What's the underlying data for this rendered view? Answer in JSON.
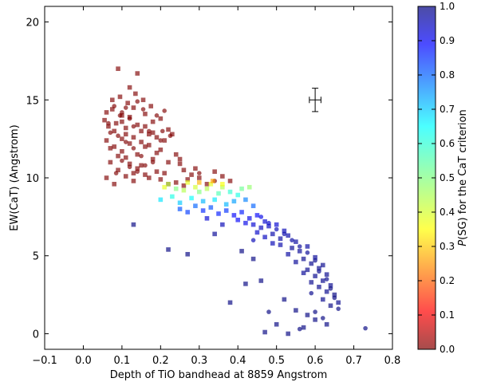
{
  "chart_data": {
    "type": "scatter",
    "xlabel": "Depth of TiO bandhead at 8859 Angstrom",
    "ylabel": "EW(CaT) (Angstrom)",
    "xlim": [
      -0.1,
      0.8
    ],
    "ylim": [
      -1,
      21
    ],
    "xticks": [
      "−0.1",
      "0.0",
      "0.1",
      "0.2",
      "0.3",
      "0.4",
      "0.5",
      "0.6",
      "0.7",
      "0.8"
    ],
    "yticks": [
      "0",
      "5",
      "10",
      "15",
      "20"
    ],
    "grid": false,
    "colorbar": {
      "label_italic": "P",
      "label_rest": "(SG) for the CaT criterion",
      "range": [
        0.0,
        1.0
      ],
      "ticks": [
        "0.0",
        "0.1",
        "0.2",
        "0.3",
        "0.4",
        "0.5",
        "0.6",
        "0.7",
        "0.8",
        "0.9",
        "1.0"
      ],
      "colormap": "jet",
      "alpha": 0.65
    },
    "error_bar": {
      "x": 0.6,
      "y": 15.0,
      "xerr": 0.015,
      "yerr": 0.75
    },
    "series": [
      {
        "marker": "square",
        "points": [
          [
            0.09,
            17.0
          ],
          [
            0.12,
            15.8
          ],
          [
            0.14,
            16.7
          ],
          [
            0.055,
            13.7
          ],
          [
            0.065,
            13.3
          ],
          [
            0.075,
            14.4
          ],
          [
            0.085,
            13.5
          ],
          [
            0.1,
            14.0
          ],
          [
            0.11,
            13.2
          ],
          [
            0.13,
            14.5
          ],
          [
            0.15,
            13.0
          ],
          [
            0.16,
            14.1
          ],
          [
            0.17,
            12.8
          ],
          [
            0.18,
            13.6
          ],
          [
            0.19,
            12.6
          ],
          [
            0.2,
            13.8
          ],
          [
            0.21,
            12.4
          ],
          [
            0.22,
            13.1
          ],
          [
            0.06,
            12.4
          ],
          [
            0.08,
            12.0
          ],
          [
            0.1,
            11.7
          ],
          [
            0.12,
            12.2
          ],
          [
            0.14,
            11.5
          ],
          [
            0.16,
            12.0
          ],
          [
            0.18,
            11.2
          ],
          [
            0.2,
            11.8
          ],
          [
            0.22,
            11.0
          ],
          [
            0.24,
            11.5
          ],
          [
            0.26,
            10.5
          ],
          [
            0.07,
            11.0
          ],
          [
            0.09,
            10.5
          ],
          [
            0.11,
            11.3
          ],
          [
            0.13,
            10.3
          ],
          [
            0.15,
            10.8
          ],
          [
            0.17,
            10.0
          ],
          [
            0.19,
            10.4
          ],
          [
            0.06,
            10.0
          ],
          [
            0.08,
            9.6
          ],
          [
            0.28,
            10.2
          ],
          [
            0.3,
            10.0
          ],
          [
            0.32,
            9.6
          ],
          [
            0.34,
            10.4
          ],
          [
            0.36,
            10.1
          ],
          [
            0.38,
            9.8
          ],
          [
            0.29,
            10.6
          ],
          [
            0.23,
            12.8
          ],
          [
            0.25,
            11.2
          ],
          [
            0.21,
            10.3
          ],
          [
            0.095,
            15.2
          ],
          [
            0.115,
            14.8
          ],
          [
            0.135,
            15.4
          ],
          [
            0.155,
            15.0
          ],
          [
            0.175,
            14.6
          ],
          [
            0.075,
            15.0
          ],
          [
            0.06,
            14.2
          ],
          [
            0.11,
            12.8
          ],
          [
            0.13,
            12.6
          ],
          [
            0.15,
            12.3
          ],
          [
            0.17,
            12.1
          ],
          [
            0.19,
            11.6
          ],
          [
            0.12,
            10.9
          ],
          [
            0.14,
            10.6
          ],
          [
            0.16,
            10.2
          ],
          [
            0.2,
            9.9
          ],
          [
            0.22,
            9.6
          ],
          [
            0.24,
            9.7
          ],
          [
            0.26,
            9.5
          ],
          [
            0.08,
            13.0
          ],
          [
            0.1,
            13.6
          ],
          [
            0.12,
            13.9
          ],
          [
            0.14,
            13.4
          ],
          [
            0.16,
            13.3
          ],
          [
            0.18,
            12.9
          ],
          [
            0.1,
            12.5
          ],
          [
            0.07,
            11.9
          ],
          [
            0.09,
            11.4
          ],
          [
            0.11,
            10.1
          ],
          [
            0.13,
            9.8
          ],
          [
            0.25,
            10.9
          ],
          [
            0.27,
            9.9
          ]
        ],
        "p": [
          1,
          1,
          1,
          1,
          1,
          1,
          1,
          1,
          1,
          1,
          1,
          1,
          1,
          1,
          1,
          1,
          1,
          1,
          1,
          1,
          1,
          1,
          1,
          1,
          1,
          1,
          1,
          1,
          1,
          1,
          1,
          1,
          1,
          1,
          1,
          1,
          1,
          1,
          1,
          1,
          1,
          1,
          1,
          1,
          1,
          1,
          1,
          1,
          1,
          1,
          1,
          1,
          1,
          1,
          1,
          1,
          1,
          1,
          1,
          1,
          1,
          1,
          1,
          1,
          1,
          1,
          1,
          1,
          1,
          1,
          1,
          1,
          1,
          1,
          1,
          1,
          1,
          1,
          1,
          1
        ]
      },
      {
        "marker": "circle",
        "points": [
          [
            0.08,
            14.6
          ],
          [
            0.1,
            14.2
          ],
          [
            0.12,
            13.8
          ],
          [
            0.14,
            14.9
          ],
          [
            0.09,
            12.7
          ],
          [
            0.11,
            12.3
          ],
          [
            0.13,
            11.9
          ],
          [
            0.07,
            12.9
          ],
          [
            0.15,
            11.4
          ],
          [
            0.1,
            11.1
          ],
          [
            0.12,
            10.7
          ],
          [
            0.14,
            10.4
          ],
          [
            0.16,
            10.8
          ],
          [
            0.2,
            12.4
          ],
          [
            0.17,
            13.0
          ],
          [
            0.19,
            14.0
          ],
          [
            0.21,
            14.3
          ],
          [
            0.085,
            10.3
          ],
          [
            0.065,
            13.5
          ],
          [
            0.18,
            11.0
          ],
          [
            0.13,
            13.3
          ],
          [
            0.095,
            14.0
          ],
          [
            0.155,
            14.4
          ],
          [
            0.11,
            14.5
          ],
          [
            0.205,
            13.0
          ],
          [
            0.225,
            12.7
          ],
          [
            0.3,
            10.3
          ],
          [
            0.34,
            9.8
          ]
        ],
        "p": [
          1,
          1,
          1,
          1,
          1,
          1,
          1,
          1,
          1,
          1,
          1,
          1,
          1,
          1,
          1,
          1,
          1,
          1,
          1,
          1,
          1,
          1,
          1,
          1,
          1,
          1,
          1,
          1
        ]
      },
      {
        "marker": "square",
        "points": [
          [
            0.21,
            9.4
          ],
          [
            0.22,
            9.6
          ],
          [
            0.24,
            9.3
          ],
          [
            0.26,
            9.2
          ],
          [
            0.27,
            9.7
          ],
          [
            0.29,
            9.4
          ],
          [
            0.3,
            9.1
          ],
          [
            0.32,
            9.3
          ],
          [
            0.33,
            9.6
          ],
          [
            0.35,
            9.0
          ],
          [
            0.36,
            9.4
          ],
          [
            0.38,
            9.1
          ],
          [
            0.4,
            8.9
          ],
          [
            0.41,
            9.3
          ],
          [
            0.43,
            9.4
          ],
          [
            0.2,
            8.6
          ],
          [
            0.23,
            8.8
          ],
          [
            0.25,
            8.4
          ],
          [
            0.28,
            8.7
          ],
          [
            0.31,
            8.5
          ],
          [
            0.34,
            8.6
          ],
          [
            0.37,
            8.3
          ],
          [
            0.39,
            8.5
          ],
          [
            0.42,
            8.6
          ],
          [
            0.44,
            8.2
          ],
          [
            0.3,
            9.7
          ],
          [
            0.335,
            9.8
          ],
          [
            0.36,
            9.6
          ]
        ],
        "p": [
          0.6,
          0.55,
          0.5,
          0.55,
          0.6,
          0.58,
          0.5,
          0.55,
          0.6,
          0.45,
          0.55,
          0.42,
          0.4,
          0.48,
          0.52,
          0.35,
          0.4,
          0.32,
          0.38,
          0.3,
          0.35,
          0.3,
          0.28,
          0.25,
          0.22,
          0.7,
          0.72,
          0.62
        ]
      },
      {
        "marker": "square",
        "points": [
          [
            0.25,
            8.0
          ],
          [
            0.27,
            7.8
          ],
          [
            0.29,
            8.2
          ],
          [
            0.31,
            7.9
          ],
          [
            0.33,
            8.1
          ],
          [
            0.35,
            7.7
          ],
          [
            0.37,
            7.9
          ],
          [
            0.39,
            7.6
          ],
          [
            0.41,
            7.8
          ],
          [
            0.43,
            7.4
          ],
          [
            0.45,
            7.6
          ],
          [
            0.47,
            7.2
          ],
          [
            0.48,
            6.9
          ],
          [
            0.5,
            7.0
          ],
          [
            0.52,
            6.6
          ],
          [
            0.46,
            6.8
          ],
          [
            0.44,
            7.0
          ],
          [
            0.49,
            6.4
          ],
          [
            0.51,
            6.1
          ],
          [
            0.53,
            6.3
          ],
          [
            0.55,
            5.9
          ],
          [
            0.54,
            5.5
          ],
          [
            0.56,
            5.3
          ],
          [
            0.58,
            5.6
          ],
          [
            0.57,
            4.8
          ],
          [
            0.59,
            4.5
          ],
          [
            0.6,
            4.9
          ],
          [
            0.61,
            4.2
          ],
          [
            0.62,
            4.4
          ],
          [
            0.58,
            4.1
          ],
          [
            0.6,
            3.7
          ],
          [
            0.62,
            3.4
          ],
          [
            0.63,
            3.8
          ],
          [
            0.61,
            3.0
          ],
          [
            0.63,
            2.7
          ],
          [
            0.64,
            3.1
          ],
          [
            0.65,
            2.5
          ],
          [
            0.62,
            2.2
          ],
          [
            0.64,
            1.8
          ],
          [
            0.66,
            2.0
          ],
          [
            0.59,
            3.3
          ],
          [
            0.57,
            3.9
          ],
          [
            0.55,
            4.6
          ],
          [
            0.53,
            5.1
          ],
          [
            0.51,
            5.7
          ],
          [
            0.49,
            5.8
          ],
          [
            0.47,
            6.2
          ],
          [
            0.45,
            6.5
          ],
          [
            0.42,
            7.1
          ],
          [
            0.4,
            7.3
          ],
          [
            0.13,
            7.0
          ],
          [
            0.22,
            5.4
          ],
          [
            0.27,
            5.1
          ],
          [
            0.41,
            5.3
          ],
          [
            0.44,
            4.8
          ],
          [
            0.46,
            3.4
          ],
          [
            0.42,
            3.2
          ],
          [
            0.38,
            2.0
          ],
          [
            0.52,
            2.2
          ],
          [
            0.55,
            1.5
          ],
          [
            0.58,
            1.2
          ],
          [
            0.5,
            0.6
          ],
          [
            0.47,
            0.1
          ],
          [
            0.53,
            0.0
          ],
          [
            0.57,
            0.4
          ],
          [
            0.6,
            0.9
          ],
          [
            0.63,
            0.6
          ],
          [
            0.34,
            6.4
          ],
          [
            0.36,
            7.0
          ],
          [
            0.32,
            7.4
          ]
        ],
        "p": [
          0.2,
          0.18,
          0.22,
          0.16,
          0.2,
          0.15,
          0.17,
          0.12,
          0.15,
          0.1,
          0.12,
          0.08,
          0.06,
          0.08,
          0.05,
          0.06,
          0.08,
          0.04,
          0.03,
          0.04,
          0.03,
          0.02,
          0.02,
          0.03,
          0.01,
          0.01,
          0.02,
          0.01,
          0.01,
          0.01,
          0.01,
          0.01,
          0.01,
          0.01,
          0.01,
          0.01,
          0.0,
          0.01,
          0.0,
          0.01,
          0.01,
          0.02,
          0.02,
          0.03,
          0.04,
          0.05,
          0.06,
          0.07,
          0.1,
          0.12,
          0.0,
          0.0,
          0.0,
          0.0,
          0.0,
          0.0,
          0.0,
          0.0,
          0.0,
          0.0,
          0.0,
          0.0,
          0.0,
          0.0,
          0.0,
          0.0,
          0.0,
          0.02,
          0.05,
          0.08
        ]
      },
      {
        "marker": "circle",
        "points": [
          [
            0.46,
            7.5
          ],
          [
            0.48,
            7.1
          ],
          [
            0.5,
            6.7
          ],
          [
            0.52,
            6.4
          ],
          [
            0.54,
            6.0
          ],
          [
            0.56,
            5.6
          ],
          [
            0.58,
            5.2
          ],
          [
            0.6,
            4.7
          ],
          [
            0.61,
            4.0
          ],
          [
            0.63,
            3.5
          ],
          [
            0.64,
            2.9
          ],
          [
            0.65,
            2.3
          ],
          [
            0.6,
            1.4
          ],
          [
            0.62,
            1.0
          ],
          [
            0.56,
            0.3
          ],
          [
            0.48,
            1.4
          ],
          [
            0.73,
            0.35
          ],
          [
            0.66,
            1.6
          ],
          [
            0.44,
            6.0
          ],
          [
            0.59,
            2.6
          ]
        ],
        "p": [
          0.1,
          0.07,
          0.05,
          0.04,
          0.03,
          0.02,
          0.02,
          0.01,
          0.01,
          0.01,
          0.0,
          0.0,
          0.0,
          0.0,
          0.0,
          0.0,
          0.0,
          0.0,
          0.05,
          0.01
        ]
      }
    ]
  }
}
